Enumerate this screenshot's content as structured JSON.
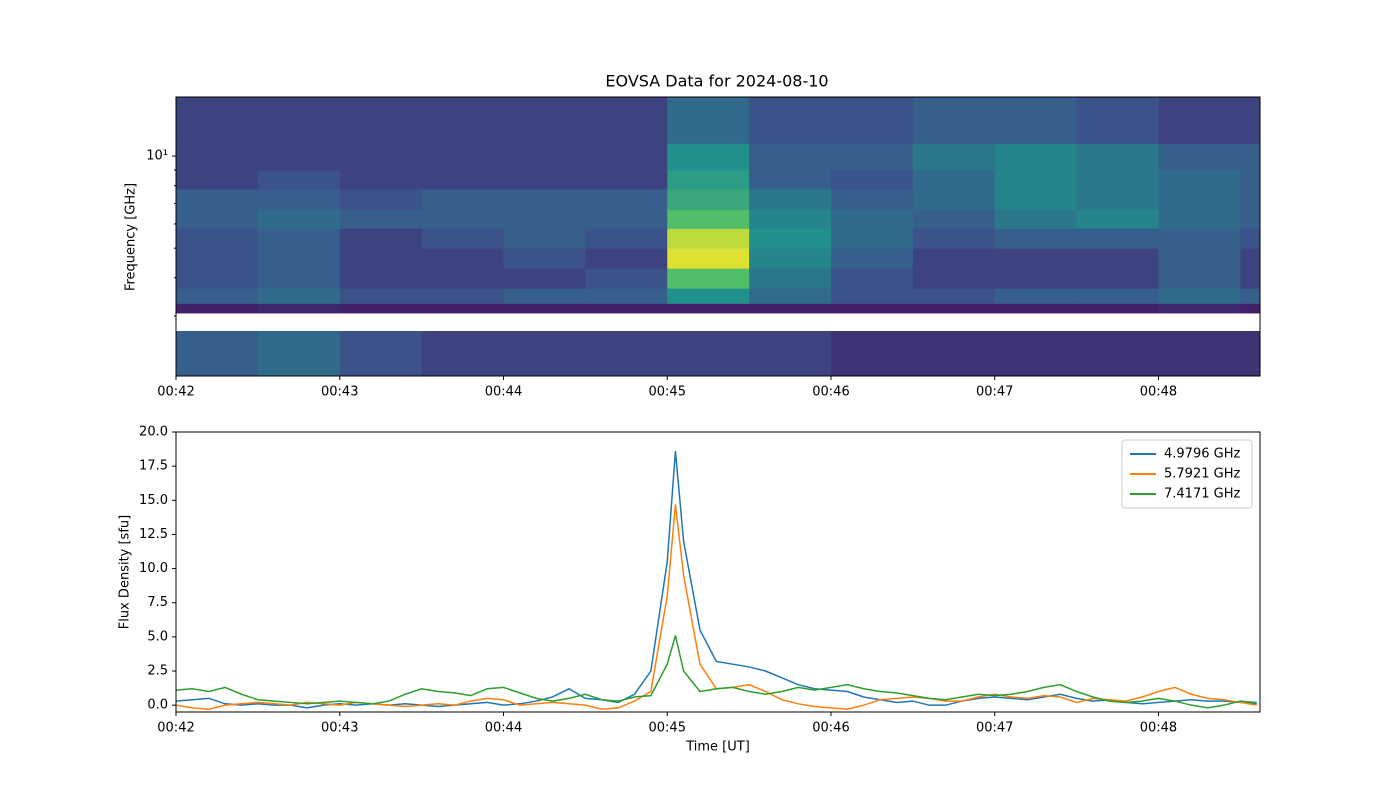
{
  "chart_data": [
    {
      "type": "heatmap",
      "title": "EOVSA Data for 2024-08-10",
      "ylabel": "Frequency [GHz]",
      "colormap": "viridis",
      "log_y": true,
      "xlim": [
        42,
        48.62
      ],
      "ylim": [
        1.91,
        15.6
      ],
      "xticks": [
        {
          "value": 42,
          "label": "00:42"
        },
        {
          "value": 43,
          "label": "00:43"
        },
        {
          "value": 44,
          "label": "00:44"
        },
        {
          "value": 45,
          "label": "00:45"
        },
        {
          "value": 46,
          "label": "00:46"
        },
        {
          "value": 47,
          "label": "00:47"
        },
        {
          "value": 48,
          "label": "00:48"
        }
      ],
      "yticks": [
        {
          "value": 10,
          "label": "10¹"
        }
      ],
      "yminorticks": [
        3,
        4,
        5,
        6,
        7,
        8,
        9
      ],
      "x": [
        42,
        42.5,
        43,
        43.5,
        44,
        44.5,
        45,
        45.5,
        46,
        46.5,
        47,
        47.5,
        48,
        48.5,
        48.62
      ],
      "y": [
        1.91,
        2.68,
        3.07,
        3.3,
        3.7,
        4.3,
        5.0,
        5.8,
        6.7,
        7.8,
        9.0,
        11.0,
        15.6
      ],
      "z": [
        [
          0.3,
          0.35,
          0.25,
          0.2,
          0.2,
          0.2,
          0.2,
          0.2,
          0.15,
          0.15,
          0.15,
          0.15,
          0.15,
          0.15
        ],
        [
          null,
          null,
          null,
          null,
          null,
          null,
          null,
          null,
          null,
          null,
          null,
          null,
          null,
          null
        ],
        [
          0.1,
          0.12,
          0.1,
          0.1,
          0.1,
          0.1,
          0.1,
          0.1,
          0.1,
          0.1,
          0.1,
          0.1,
          0.12,
          0.1
        ],
        [
          0.3,
          0.35,
          0.25,
          0.25,
          0.3,
          0.3,
          0.5,
          0.35,
          0.25,
          0.25,
          0.3,
          0.3,
          0.35,
          0.3
        ],
        [
          0.25,
          0.3,
          0.2,
          0.2,
          0.2,
          0.25,
          0.7,
          0.4,
          0.25,
          0.2,
          0.2,
          0.2,
          0.3,
          0.2
        ],
        [
          0.25,
          0.3,
          0.2,
          0.2,
          0.25,
          0.2,
          0.95,
          0.45,
          0.3,
          0.2,
          0.2,
          0.2,
          0.3,
          0.2
        ],
        [
          0.25,
          0.3,
          0.2,
          0.25,
          0.3,
          0.25,
          0.9,
          0.5,
          0.35,
          0.25,
          0.3,
          0.3,
          0.3,
          0.25
        ],
        [
          0.3,
          0.35,
          0.3,
          0.3,
          0.3,
          0.3,
          0.7,
          0.45,
          0.35,
          0.3,
          0.4,
          0.45,
          0.35,
          0.3
        ],
        [
          0.3,
          0.3,
          0.25,
          0.3,
          0.3,
          0.3,
          0.6,
          0.4,
          0.3,
          0.35,
          0.45,
          0.4,
          0.35,
          0.3
        ],
        [
          0.2,
          0.25,
          0.2,
          0.2,
          0.2,
          0.2,
          0.55,
          0.3,
          0.25,
          0.35,
          0.45,
          0.4,
          0.35,
          0.3
        ],
        [
          0.2,
          0.2,
          0.2,
          0.2,
          0.2,
          0.2,
          0.5,
          0.3,
          0.3,
          0.4,
          0.45,
          0.4,
          0.3,
          0.3
        ],
        [
          0.2,
          0.2,
          0.2,
          0.2,
          0.2,
          0.2,
          0.35,
          0.25,
          0.25,
          0.3,
          0.3,
          0.25,
          0.2,
          0.2
        ]
      ]
    },
    {
      "type": "line",
      "xlabel": "Time [UT]",
      "ylabel": "Flux Density [sfu]",
      "legend": "upper right",
      "xlim": [
        42,
        48.62
      ],
      "ylim": [
        -0.5,
        20
      ],
      "xticks": [
        {
          "value": 42,
          "label": "00:42"
        },
        {
          "value": 43,
          "label": "00:43"
        },
        {
          "value": 44,
          "label": "00:44"
        },
        {
          "value": 45,
          "label": "00:45"
        },
        {
          "value": 46,
          "label": "00:46"
        },
        {
          "value": 47,
          "label": "00:47"
        },
        {
          "value": 48,
          "label": "00:48"
        }
      ],
      "yticks": [
        {
          "value": 0,
          "label": "0.0"
        },
        {
          "value": 2.5,
          "label": "2.5"
        },
        {
          "value": 5,
          "label": "5.0"
        },
        {
          "value": 7.5,
          "label": "7.5"
        },
        {
          "value": 10,
          "label": "10.0"
        },
        {
          "value": 12.5,
          "label": "12.5"
        },
        {
          "value": 15,
          "label": "15.0"
        },
        {
          "value": 17.5,
          "label": "17.5"
        },
        {
          "value": 20,
          "label": "20.0"
        }
      ],
      "x": [
        42.0,
        42.1,
        42.2,
        42.3,
        42.4,
        42.5,
        42.6,
        42.7,
        42.8,
        42.9,
        43.0,
        43.1,
        43.2,
        43.3,
        43.4,
        43.5,
        43.6,
        43.7,
        43.8,
        43.9,
        44.0,
        44.1,
        44.2,
        44.3,
        44.4,
        44.5,
        44.6,
        44.7,
        44.8,
        44.9,
        45.0,
        45.05,
        45.1,
        45.2,
        45.3,
        45.4,
        45.5,
        45.6,
        45.7,
        45.8,
        45.9,
        46.0,
        46.1,
        46.2,
        46.3,
        46.4,
        46.5,
        46.6,
        46.7,
        46.8,
        46.9,
        47.0,
        47.1,
        47.2,
        47.3,
        47.4,
        47.5,
        47.6,
        47.7,
        47.8,
        47.9,
        48.0,
        48.1,
        48.2,
        48.3,
        48.4,
        48.5,
        48.6
      ],
      "series": [
        {
          "name": "4.9796 GHz",
          "color": "#1f77b4",
          "values": [
            0.3,
            0.4,
            0.5,
            0.1,
            0.0,
            0.1,
            0.0,
            0.0,
            -0.2,
            0.0,
            0.1,
            0.0,
            0.1,
            0.0,
            0.1,
            0.0,
            -0.1,
            0.0,
            0.1,
            0.2,
            0.0,
            0.1,
            0.3,
            0.6,
            1.2,
            0.5,
            0.4,
            0.2,
            0.8,
            2.5,
            10.5,
            18.6,
            12.0,
            5.5,
            3.2,
            3.0,
            2.8,
            2.5,
            2.0,
            1.5,
            1.2,
            1.1,
            1.0,
            0.6,
            0.4,
            0.2,
            0.3,
            0.0,
            0.0,
            0.3,
            0.5,
            0.6,
            0.5,
            0.4,
            0.6,
            0.8,
            0.5,
            0.3,
            0.4,
            0.2,
            0.1,
            0.2,
            0.3,
            0.4,
            0.3,
            0.3,
            0.2,
            0.1
          ]
        },
        {
          "name": "5.7921 GHz",
          "color": "#ff7f0e",
          "values": [
            0.0,
            -0.2,
            -0.3,
            0.0,
            0.1,
            0.2,
            0.1,
            0.0,
            0.2,
            0.1,
            0.0,
            0.2,
            0.1,
            0.0,
            -0.1,
            0.0,
            0.1,
            0.0,
            0.3,
            0.5,
            0.4,
            0.0,
            0.1,
            0.2,
            0.1,
            0.0,
            -0.3,
            -0.2,
            0.3,
            1.0,
            8.0,
            14.7,
            9.5,
            3.0,
            1.2,
            1.3,
            1.5,
            1.0,
            0.4,
            0.1,
            -0.1,
            -0.2,
            -0.3,
            0.0,
            0.4,
            0.5,
            0.6,
            0.5,
            0.3,
            0.3,
            0.6,
            0.8,
            0.6,
            0.5,
            0.7,
            0.6,
            0.2,
            0.5,
            0.4,
            0.3,
            0.6,
            1.0,
            1.3,
            0.8,
            0.5,
            0.4,
            0.2,
            0.0
          ]
        },
        {
          "name": "7.4171 GHz",
          "color": "#2ca02c",
          "values": [
            1.1,
            1.2,
            1.0,
            1.3,
            0.8,
            0.4,
            0.3,
            0.2,
            0.1,
            0.2,
            0.3,
            0.2,
            0.1,
            0.3,
            0.8,
            1.2,
            1.0,
            0.9,
            0.7,
            1.2,
            1.3,
            0.9,
            0.5,
            0.3,
            0.5,
            0.8,
            0.4,
            0.3,
            0.6,
            0.7,
            3.0,
            5.1,
            2.5,
            1.0,
            1.2,
            1.3,
            1.0,
            0.8,
            1.0,
            1.3,
            1.1,
            1.3,
            1.5,
            1.2,
            1.0,
            0.9,
            0.7,
            0.5,
            0.4,
            0.6,
            0.8,
            0.7,
            0.8,
            1.0,
            1.3,
            1.5,
            1.0,
            0.6,
            0.3,
            0.2,
            0.3,
            0.5,
            0.3,
            0.0,
            -0.2,
            0.0,
            0.3,
            0.2
          ]
        }
      ]
    }
  ]
}
